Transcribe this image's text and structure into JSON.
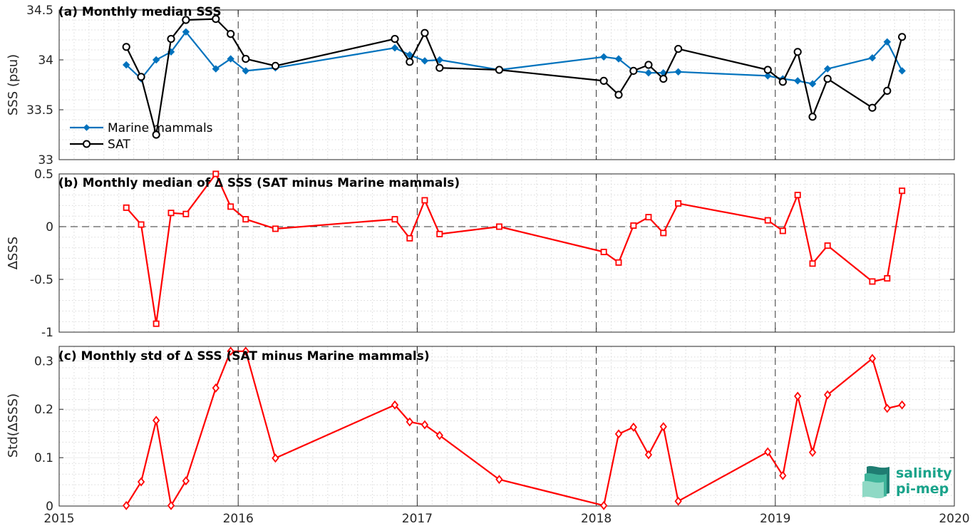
{
  "x_axis": {
    "min": 2015,
    "max": 2020,
    "ticks": [
      2015,
      2016,
      2017,
      2018,
      2019,
      2020
    ],
    "tick_labels": [
      "2015",
      "2016",
      "2017",
      "2018",
      "2019",
      "2020"
    ]
  },
  "logo": {
    "line1": "salinity",
    "line2": "pi-mep"
  },
  "chart_data": [
    {
      "type": "line",
      "title": "(a) Monthly median SSS",
      "ylabel": "SSS (psu)",
      "ylim": [
        33,
        34.5
      ],
      "yticks": [
        33,
        33.5,
        34,
        34.5
      ],
      "ytick_labels": [
        "33",
        "33.5",
        "34",
        "34.5"
      ],
      "grid": true,
      "legend_position": "bottom-left",
      "series": [
        {
          "name": "Marine mammals",
          "color": "#0072bd",
          "marker": "diamond-filled",
          "x": [
            2015.375,
            2015.458,
            2015.542,
            2015.625,
            2015.708,
            2015.875,
            2015.958,
            2016.042,
            2016.208,
            2016.875,
            2016.958,
            2017.042,
            2017.125,
            2017.458,
            2018.042,
            2018.125,
            2018.208,
            2018.292,
            2018.375,
            2018.458,
            2018.958,
            2019.042,
            2019.125,
            2019.208,
            2019.292,
            2019.542,
            2019.625,
            2019.708
          ],
          "y": [
            33.95,
            33.81,
            34.0,
            34.08,
            34.28,
            33.91,
            34.01,
            33.89,
            33.92,
            34.12,
            34.05,
            33.99,
            34.0,
            33.9,
            34.03,
            34.01,
            33.89,
            33.87,
            33.87,
            33.88,
            33.84,
            33.81,
            33.79,
            33.76,
            33.91,
            34.02,
            34.18,
            33.89
          ]
        },
        {
          "name": "SAT",
          "color": "#000000",
          "marker": "circle-open",
          "x": [
            2015.375,
            2015.458,
            2015.542,
            2015.625,
            2015.708,
            2015.875,
            2015.958,
            2016.042,
            2016.208,
            2016.875,
            2016.958,
            2017.042,
            2017.125,
            2017.458,
            2018.042,
            2018.125,
            2018.208,
            2018.292,
            2018.375,
            2018.458,
            2018.958,
            2019.042,
            2019.125,
            2019.208,
            2019.292,
            2019.542,
            2019.625,
            2019.708
          ],
          "y": [
            34.13,
            33.83,
            33.25,
            34.21,
            34.4,
            34.41,
            34.26,
            34.01,
            33.94,
            34.21,
            33.98,
            34.27,
            33.92,
            33.9,
            33.79,
            33.65,
            33.89,
            33.95,
            33.81,
            34.11,
            33.9,
            33.78,
            34.08,
            33.43,
            33.81,
            33.52,
            33.69,
            34.23
          ]
        }
      ]
    },
    {
      "type": "line",
      "title": "(b) Monthly median of ∆ SSS (SAT minus Marine mammals)",
      "ylabel": "∆SSS",
      "ylim": [
        -1,
        0.5
      ],
      "yticks": [
        -1,
        -0.5,
        0,
        0.5
      ],
      "ytick_labels": [
        "-1",
        "-0.5",
        "0",
        "0.5"
      ],
      "grid": true,
      "zero_line": true,
      "series": [
        {
          "color": "#ff0000",
          "marker": "square-open",
          "x": [
            2015.375,
            2015.458,
            2015.542,
            2015.625,
            2015.708,
            2015.875,
            2015.958,
            2016.042,
            2016.208,
            2016.875,
            2016.958,
            2017.042,
            2017.125,
            2017.458,
            2018.042,
            2018.125,
            2018.208,
            2018.292,
            2018.375,
            2018.458,
            2018.958,
            2019.042,
            2019.125,
            2019.208,
            2019.292,
            2019.542,
            2019.625,
            2019.708
          ],
          "y": [
            0.18,
            0.02,
            -0.92,
            0.13,
            0.12,
            0.5,
            0.19,
            0.07,
            -0.02,
            0.07,
            -0.11,
            0.25,
            -0.07,
            0.0,
            -0.24,
            -0.34,
            0.01,
            0.09,
            -0.06,
            0.22,
            0.06,
            -0.04,
            0.3,
            -0.35,
            -0.18,
            -0.52,
            -0.49,
            0.34
          ]
        }
      ]
    },
    {
      "type": "line",
      "title": "(c) Monthly std of ∆ SSS (SAT minus Marine mammals)",
      "ylabel": "Std(∆SSS)",
      "ylim": [
        0,
        0.33
      ],
      "yticks": [
        0,
        0.1,
        0.2,
        0.3
      ],
      "ytick_labels": [
        "0",
        "0.1",
        "0.2",
        "0.3"
      ],
      "grid": true,
      "series": [
        {
          "color": "#ff0000",
          "marker": "diamond-open",
          "x": [
            2015.375,
            2015.458,
            2015.542,
            2015.625,
            2015.708,
            2015.875,
            2015.958,
            2016.042,
            2016.208,
            2016.875,
            2016.958,
            2017.042,
            2017.125,
            2017.458,
            2018.042,
            2018.125,
            2018.208,
            2018.292,
            2018.375,
            2018.458,
            2018.958,
            2019.042,
            2019.125,
            2019.208,
            2019.292,
            2019.542,
            2019.625,
            2019.708
          ],
          "y": [
            0.001,
            0.05,
            0.177,
            0.001,
            0.052,
            0.244,
            0.32,
            0.32,
            0.099,
            0.209,
            0.174,
            0.168,
            0.146,
            0.055,
            0.001,
            0.149,
            0.163,
            0.106,
            0.164,
            0.01,
            0.112,
            0.063,
            0.227,
            0.111,
            0.23,
            0.305,
            0.202,
            0.209
          ]
        }
      ]
    }
  ]
}
